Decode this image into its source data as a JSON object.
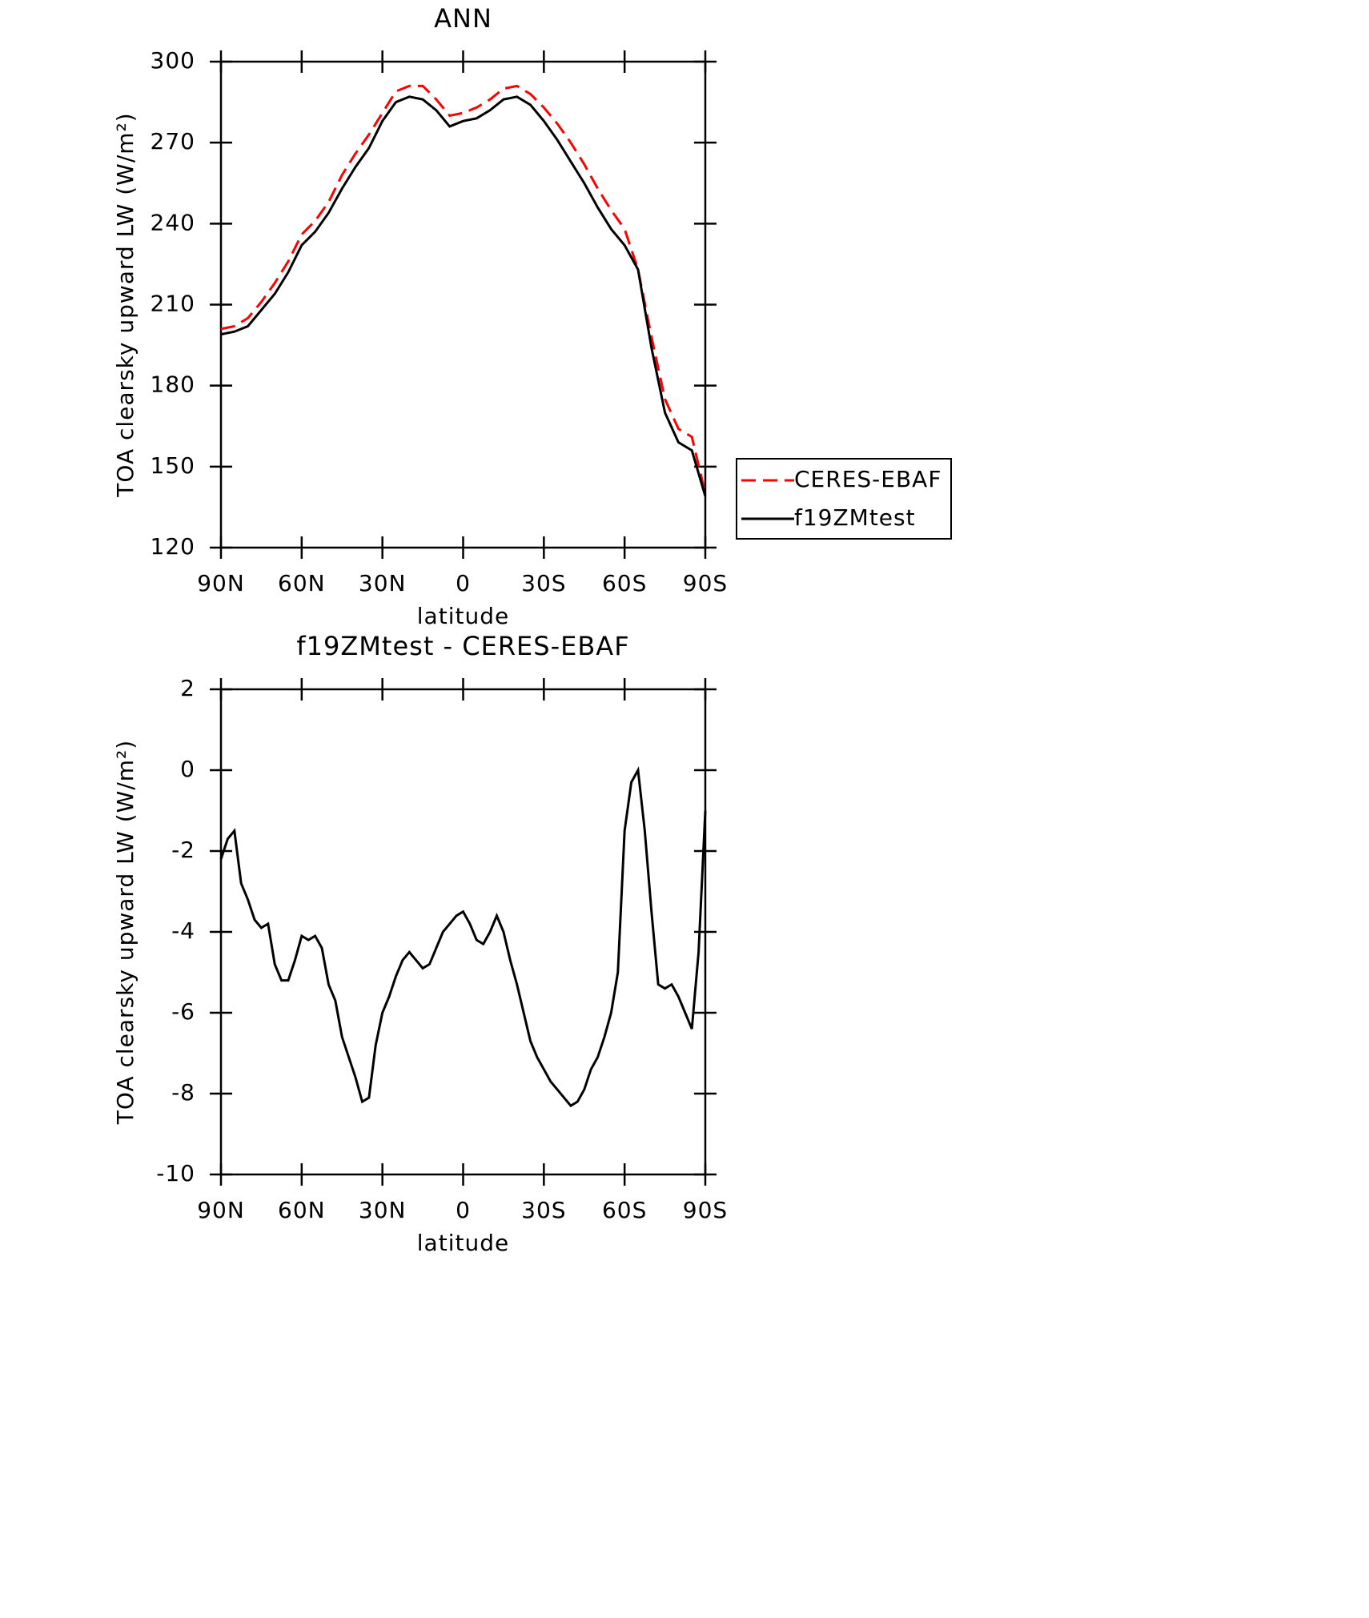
{
  "chart_data": [
    {
      "type": "line",
      "title": "ANN",
      "x_label": "latitude",
      "y_label": "TOA clearsky upward LW (W/m²)",
      "x": [
        90,
        85,
        80,
        75,
        70,
        65,
        60,
        55,
        50,
        45,
        40,
        35,
        30,
        25,
        20,
        15,
        10,
        5,
        0,
        -5,
        -10,
        -15,
        -20,
        -25,
        -30,
        -35,
        -40,
        -45,
        -50,
        -55,
        -60,
        -65,
        -70,
        -75,
        -80,
        -85,
        -90
      ],
      "series": [
        {
          "name": "CERES-EBAF",
          "color": "#ff0000",
          "linestyle": "dashed",
          "values": [
            201,
            202,
            205,
            211,
            218,
            226,
            236,
            241,
            248,
            258,
            266,
            273,
            281,
            289,
            291,
            291,
            286,
            280,
            281,
            283,
            286,
            290,
            291,
            288,
            283,
            277,
            270,
            262,
            253,
            245,
            238,
            223,
            198,
            175,
            164,
            161,
            140
          ]
        },
        {
          "name": "f19ZMtest",
          "color": "#000000",
          "linestyle": "solid",
          "values": [
            199,
            200,
            202,
            208,
            214,
            222,
            232,
            237,
            244,
            253,
            261,
            268,
            278,
            285,
            287,
            286,
            282,
            276,
            278,
            279,
            282,
            286,
            287,
            284,
            278,
            271,
            263,
            255,
            246,
            238,
            232,
            223,
            194,
            170,
            159,
            156,
            139
          ]
        }
      ],
      "xlim": [
        90,
        -90
      ],
      "xticks": [
        {
          "value": 90,
          "label": "90N"
        },
        {
          "value": 60,
          "label": "60N"
        },
        {
          "value": 30,
          "label": "30N"
        },
        0,
        {
          "value": -30,
          "label": "30S"
        },
        {
          "value": -60,
          "label": "60S"
        },
        {
          "value": -90,
          "label": "90S"
        }
      ],
      "ylim": [
        120,
        300
      ],
      "yticks": [
        120,
        150,
        180,
        210,
        240,
        270,
        300
      ],
      "legend": "right"
    },
    {
      "type": "line",
      "title": "f19ZMtest - CERES-EBAF",
      "x_label": "latitude",
      "y_label": "TOA clearsky upward LW (W/m²)",
      "x": [
        90,
        87.5,
        85,
        82.5,
        80,
        77.5,
        75,
        72.5,
        70,
        67.5,
        65,
        62.5,
        60,
        57.5,
        55,
        52.5,
        50,
        47.5,
        45,
        42.5,
        40,
        37.5,
        35,
        32.5,
        30,
        27.5,
        25,
        22.5,
        20,
        17.5,
        15,
        12.5,
        10,
        7.5,
        5,
        2.5,
        0,
        -2.5,
        -5,
        -7.5,
        -10,
        -12.5,
        -15,
        -17.5,
        -20,
        -22.5,
        -25,
        -27.5,
        -30,
        -32.5,
        -35,
        -37.5,
        -40,
        -42.5,
        -45,
        -47.5,
        -50,
        -52.5,
        -55,
        -57.5,
        -60,
        -62.5,
        -65,
        -67.5,
        -70,
        -72.5,
        -75,
        -77.5,
        -80,
        -82.5,
        -85,
        -87.5,
        -90
      ],
      "values": [
        -2.2,
        -1.7,
        -1.5,
        -2.8,
        -3.2,
        -3.7,
        -3.9,
        -3.8,
        -4.8,
        -5.2,
        -5.2,
        -4.7,
        -4.1,
        -4.2,
        -4.1,
        -4.4,
        -5.3,
        -5.7,
        -6.6,
        -7.1,
        -7.6,
        -8.2,
        -8.1,
        -6.8,
        -6.0,
        -5.6,
        -5.1,
        -4.7,
        -4.5,
        -4.7,
        -4.9,
        -4.8,
        -4.4,
        -4.0,
        -3.8,
        -3.6,
        -3.5,
        -3.8,
        -4.2,
        -4.3,
        -4.0,
        -3.6,
        -4.0,
        -4.7,
        -5.3,
        -6.0,
        -6.7,
        -7.1,
        -7.4,
        -7.7,
        -7.9,
        -8.1,
        -8.3,
        -8.2,
        -7.9,
        -7.4,
        -7.1,
        -6.6,
        -6.0,
        -5.0,
        -1.5,
        -0.3,
        0.0,
        -1.5,
        -3.5,
        -5.3,
        -5.4,
        -5.3,
        -5.6,
        -6.0,
        -6.4,
        -4.5,
        -1.0
      ],
      "color": "#000000",
      "xlim": [
        90,
        -90
      ],
      "xticks": [
        {
          "value": 90,
          "label": "90N"
        },
        {
          "value": 60,
          "label": "60N"
        },
        {
          "value": 30,
          "label": "30N"
        },
        0,
        {
          "value": -30,
          "label": "30S"
        },
        {
          "value": -60,
          "label": "60S"
        },
        {
          "value": -90,
          "label": "90S"
        }
      ],
      "ylim": [
        -10,
        2
      ],
      "yticks": [
        -10,
        -8,
        -6,
        -4,
        -2,
        0,
        2
      ]
    }
  ]
}
